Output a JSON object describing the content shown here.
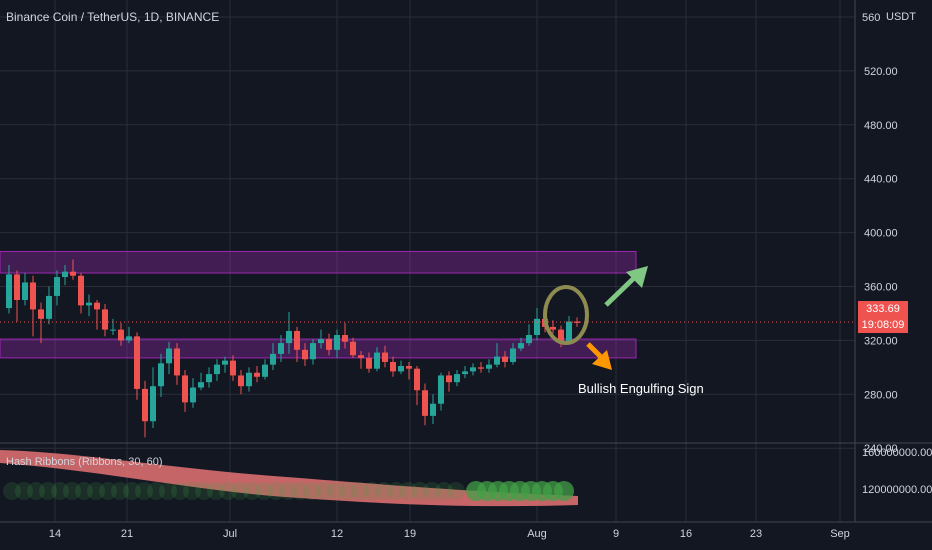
{
  "title": "Binance Coin / TetherUS, 1D, BINANCE",
  "price_unit": "USDT",
  "last_price": "333.69",
  "countdown": "19:08:09",
  "annotation": "Bullish Engulfing Sign",
  "indicator": {
    "title": "Hash Ribbons (Ribbons, 30, 60)",
    "axis_labels": [
      "160000000.00",
      "120000000.00"
    ]
  },
  "colors": {
    "background": "#131722",
    "grid": "#2a2e39",
    "up": "#26a69a",
    "down": "#ef5350",
    "zone": "#9c27b0",
    "circle": "#8d8b50",
    "arrow_up": "#81c784",
    "arrow_down": "#ff9800",
    "ribbon": "#e57373",
    "ribbon_dots": "#43a047"
  },
  "chart_data": {
    "type": "candlestick",
    "title": "Binance Coin / TetherUS, 1D, BINANCE",
    "y_axis": {
      "ticks": [
        560,
        520,
        480,
        440,
        400,
        360,
        320,
        280,
        240
      ],
      "ylim": [
        230,
        575
      ],
      "unit": "USDT"
    },
    "x_axis": {
      "tick_labels": [
        "14",
        "21",
        "Jul",
        "12",
        "19",
        "Aug",
        "9",
        "16",
        "23",
        "Sep"
      ]
    },
    "zones": [
      {
        "low": 370,
        "high": 386
      },
      {
        "low": 307,
        "high": 321
      }
    ],
    "candles": [
      [
        344,
        369,
        376,
        340
      ],
      [
        369,
        350,
        372,
        334
      ],
      [
        350,
        363,
        370,
        346
      ],
      [
        363,
        343,
        368,
        323
      ],
      [
        343,
        336,
        348,
        318
      ],
      [
        336,
        353,
        360,
        332
      ],
      [
        353,
        367,
        372,
        346
      ],
      [
        367,
        371,
        376,
        361
      ],
      [
        371,
        368,
        380,
        365
      ],
      [
        368,
        346,
        370,
        340
      ],
      [
        346,
        348,
        354,
        338
      ],
      [
        348,
        343,
        350,
        328
      ],
      [
        343,
        328,
        347,
        323
      ],
      [
        328,
        328,
        336,
        324
      ],
      [
        328,
        320,
        333,
        316
      ],
      [
        320,
        323,
        330,
        318
      ],
      [
        323,
        284,
        326,
        276
      ],
      [
        284,
        260,
        290,
        248
      ],
      [
        260,
        286,
        300,
        255
      ],
      [
        286,
        303,
        310,
        278
      ],
      [
        303,
        314,
        319,
        295
      ],
      [
        314,
        294,
        318,
        287
      ],
      [
        294,
        274,
        298,
        267
      ],
      [
        274,
        285,
        292,
        270
      ],
      [
        285,
        289,
        296,
        283
      ],
      [
        289,
        295,
        300,
        285
      ],
      [
        295,
        302,
        306,
        290
      ],
      [
        302,
        305,
        308,
        296
      ],
      [
        305,
        294,
        309,
        290
      ],
      [
        294,
        286,
        298,
        280
      ],
      [
        286,
        296,
        300,
        282
      ],
      [
        296,
        293,
        301,
        289
      ],
      [
        293,
        302,
        306,
        291
      ],
      [
        302,
        310,
        318,
        298
      ],
      [
        310,
        318,
        324,
        304
      ],
      [
        318,
        327,
        341,
        310
      ],
      [
        327,
        313,
        330,
        304
      ],
      [
        313,
        306,
        318,
        301
      ],
      [
        306,
        318,
        321,
        302
      ],
      [
        318,
        321,
        328,
        314
      ],
      [
        321,
        313,
        325,
        309
      ],
      [
        313,
        324,
        328,
        307
      ],
      [
        324,
        319,
        333,
        314
      ],
      [
        319,
        309,
        322,
        307
      ],
      [
        309,
        307,
        312,
        299
      ],
      [
        307,
        299,
        311,
        296
      ],
      [
        299,
        311,
        315,
        297
      ],
      [
        311,
        304,
        316,
        300
      ],
      [
        304,
        297,
        308,
        293
      ],
      [
        297,
        301,
        305,
        295
      ],
      [
        301,
        299,
        304,
        291
      ],
      [
        299,
        283,
        301,
        272
      ],
      [
        283,
        264,
        288,
        257
      ],
      [
        264,
        273,
        280,
        258
      ],
      [
        273,
        294,
        296,
        268
      ],
      [
        294,
        289,
        297,
        282
      ],
      [
        289,
        295,
        298,
        286
      ],
      [
        295,
        297,
        301,
        292
      ],
      [
        297,
        300,
        303,
        294
      ],
      [
        300,
        299,
        304,
        296
      ],
      [
        299,
        302,
        306,
        296
      ],
      [
        302,
        308,
        318,
        300
      ],
      [
        308,
        304,
        312,
        300
      ],
      [
        304,
        314,
        318,
        302
      ],
      [
        314,
        318,
        322,
        312
      ],
      [
        318,
        324,
        332,
        316
      ],
      [
        324,
        336,
        344,
        320
      ],
      [
        336,
        330,
        340,
        326
      ],
      [
        330,
        328,
        335,
        325
      ],
      [
        328,
        319,
        331,
        315
      ],
      [
        319,
        334,
        338,
        317
      ],
      [
        334,
        333,
        337,
        330
      ]
    ]
  }
}
